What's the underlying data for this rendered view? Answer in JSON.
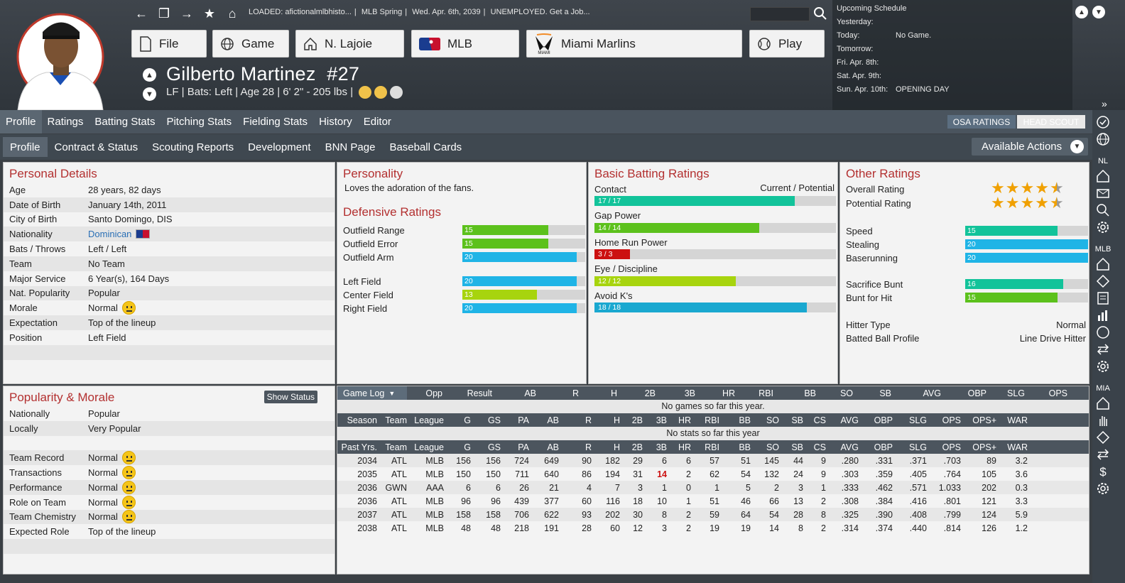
{
  "header": {
    "loaded_text": "LOADED: afictionalmlbhisto...",
    "league_phase": "MLB Spring",
    "date": "Wed. Apr. 6th, 2039",
    "job_status": "UNEMPLOYED. Get a Job...",
    "nav": [
      {
        "label": "File",
        "icon": "file-icon"
      },
      {
        "label": "Game",
        "icon": "globe-icon"
      },
      {
        "label": "N. Lajoie",
        "icon": "home-icon"
      },
      {
        "label": "MLB",
        "icon": "mlb-logo"
      },
      {
        "label": "Miami Marlins",
        "icon": "marlins-logo"
      },
      {
        "label": "Play",
        "icon": "baseball-icon"
      }
    ],
    "player_name": "Gilberto Martinez",
    "player_number": "#27",
    "player_line": "LF | Bats: Left  |  Age 28  |  6' 2\" - 205 lbs  |"
  },
  "schedule": {
    "title": "Upcoming Schedule",
    "rows": [
      {
        "day": "Yesterday:",
        "event": ""
      },
      {
        "day": "Today:",
        "event": "No Game."
      },
      {
        "day": "Tomorrow:",
        "event": ""
      },
      {
        "day": "Fri. Apr. 8th:",
        "event": ""
      },
      {
        "day": "Sat. Apr. 9th:",
        "event": ""
      },
      {
        "day": "Sun. Apr. 10th:",
        "event": "OPENING DAY"
      }
    ]
  },
  "tabs1": [
    "Profile",
    "Ratings",
    "Batting Stats",
    "Pitching Stats",
    "Fielding Stats",
    "History",
    "Editor"
  ],
  "osa_label": "OSA RATINGS",
  "headscout_label": "HEAD SCOUT",
  "tabs2": [
    "Profile",
    "Contract & Status",
    "Scouting Reports",
    "Development",
    "BNN Page",
    "Baseball Cards"
  ],
  "actions_label": "Available Actions",
  "sidebar_labels": {
    "nl": "NL",
    "mlb": "MLB",
    "mia": "MIA"
  },
  "personal": {
    "title": "Personal Details",
    "rows": [
      {
        "k": "Age",
        "v": "28 years, 82 days"
      },
      {
        "k": "Date of Birth",
        "v": "January 14th, 2011"
      },
      {
        "k": "City of Birth",
        "v": "Santo Domingo, DIS"
      },
      {
        "k": "Nationality",
        "v": "Dominican"
      },
      {
        "k": "Bats / Throws",
        "v": "Left / Left"
      },
      {
        "k": "Team",
        "v": "No Team"
      },
      {
        "k": "Major Service",
        "v": "6 Year(s), 164 Days"
      },
      {
        "k": "Nat. Popularity",
        "v": "Popular"
      },
      {
        "k": "Morale",
        "v": "Normal"
      },
      {
        "k": "Expectation",
        "v": "Top of the lineup"
      },
      {
        "k": "Position",
        "v": "Left Field"
      }
    ]
  },
  "personality": {
    "title": "Personality",
    "text": "Loves the adoration of the fans."
  },
  "defensive": {
    "title": "Defensive Ratings",
    "rows": [
      {
        "label": "Outfield Range",
        "value": "15",
        "current": 15,
        "potential": 15,
        "color": "#5cc11c"
      },
      {
        "label": "Outfield Error",
        "value": "15",
        "current": 15,
        "potential": 15,
        "color": "#5cc11c"
      },
      {
        "label": "Outfield Arm",
        "value": "20",
        "current": 20,
        "potential": 20,
        "color": "#1fb4e6"
      },
      {
        "label": "Left Field",
        "value": "20",
        "current": 20,
        "potential": 20,
        "color": "#1fb4e6"
      },
      {
        "label": "Center Field",
        "value": "13",
        "current": 13,
        "potential": 13,
        "color": "#a7d40e"
      },
      {
        "label": "Right Field",
        "value": "20",
        "current": 20,
        "potential": 20,
        "color": "#1fb4e6"
      }
    ]
  },
  "batting": {
    "title": "Basic Batting Ratings",
    "cp_label": "Current / Potential",
    "rows": [
      {
        "label": "Contact",
        "value": "17 / 17",
        "current": 17,
        "color": "#12c39a"
      },
      {
        "label": "Gap Power",
        "value": "14 / 14",
        "current": 14,
        "color": "#5cc11c"
      },
      {
        "label": "Home Run Power",
        "value": "3 / 3",
        "current": 3,
        "color": "#cc1111"
      },
      {
        "label": "Eye / Discipline",
        "value": "12 / 12",
        "current": 12,
        "color": "#a7d40e"
      },
      {
        "label": "Avoid K's",
        "value": "18 / 18",
        "current": 18,
        "color": "#1aa8d0"
      }
    ]
  },
  "other": {
    "title": "Other Ratings",
    "overall_label": "Overall Rating",
    "overall_stars": 4.5,
    "potential_label": "Potential Rating",
    "potential_stars": 4.5,
    "rows": [
      {
        "label": "Speed",
        "value": "15",
        "current": 15,
        "color": "#12c39a"
      },
      {
        "label": "Stealing",
        "value": "20",
        "current": 20,
        "color": "#1fb4e6"
      },
      {
        "label": "Baserunning",
        "value": "20",
        "current": 20,
        "color": "#1fb4e6"
      },
      {
        "label": "Sacrifice Bunt",
        "value": "16",
        "current": 16,
        "color": "#12c39a"
      },
      {
        "label": "Bunt for Hit",
        "value": "15",
        "current": 15,
        "color": "#5cc11c"
      }
    ],
    "hitter_type_label": "Hitter Type",
    "hitter_type": "Normal",
    "bbp_label": "Batted Ball Profile",
    "bbp": "Line Drive Hitter"
  },
  "popularity": {
    "title": "Popularity & Morale",
    "button": "Show Status",
    "rows1": [
      {
        "k": "Nationally",
        "v": "Popular"
      },
      {
        "k": "Locally",
        "v": "Very Popular"
      }
    ],
    "rows2": [
      {
        "k": "Team Record",
        "v": "Normal",
        "emoji": true
      },
      {
        "k": "Transactions",
        "v": "Normal",
        "emoji": true
      },
      {
        "k": "Performance",
        "v": "Normal",
        "emoji": true
      },
      {
        "k": "Role on Team",
        "v": "Normal",
        "emoji": true
      },
      {
        "k": "Team Chemistry",
        "v": "Normal",
        "emoji": true
      },
      {
        "k": "Expected Role",
        "v": "Top of the lineup",
        "emoji": false
      }
    ]
  },
  "stats": {
    "gamelog_label": "Game Log",
    "gamelog_cols": [
      "Opp",
      "Result",
      "AB",
      "R",
      "H",
      "2B",
      "3B",
      "HR",
      "RBI",
      "BB",
      "SO",
      "SB",
      "AVG",
      "OBP",
      "SLG",
      "OPS"
    ],
    "no_games": "No games so far this year.",
    "season_cols": [
      "Season",
      "Team",
      "League",
      "G",
      "GS",
      "PA",
      "AB",
      "R",
      "H",
      "2B",
      "3B",
      "HR",
      "RBI",
      "BB",
      "SO",
      "SB",
      "CS",
      "AVG",
      "OBP",
      "SLG",
      "OPS",
      "OPS+",
      "WAR"
    ],
    "no_stats": "No stats so far this year",
    "past_cols": [
      "Past Yrs.",
      "Team",
      "League",
      "G",
      "GS",
      "PA",
      "AB",
      "R",
      "H",
      "2B",
      "3B",
      "HR",
      "RBI",
      "BB",
      "SO",
      "SB",
      "CS",
      "AVG",
      "OBP",
      "SLG",
      "OPS",
      "OPS+",
      "WAR"
    ],
    "past_rows": [
      [
        "2034",
        "ATL",
        "MLB",
        "156",
        "156",
        "724",
        "649",
        "90",
        "182",
        "29",
        "6",
        "6",
        "57",
        "51",
        "145",
        "44",
        "9",
        ".280",
        ".331",
        ".371",
        ".703",
        "89",
        "3.2"
      ],
      [
        "2035",
        "ATL",
        "MLB",
        "150",
        "150",
        "711",
        "640",
        "86",
        "194",
        "31",
        "14",
        "2",
        "62",
        "54",
        "132",
        "24",
        "9",
        ".303",
        ".359",
        ".405",
        ".764",
        "105",
        "3.6"
      ],
      [
        "2036",
        "GWN",
        "AAA",
        "6",
        "6",
        "26",
        "21",
        "4",
        "7",
        "3",
        "1",
        "0",
        "1",
        "5",
        "2",
        "3",
        "1",
        ".333",
        ".462",
        ".571",
        "1.033",
        "202",
        "0.3"
      ],
      [
        "2036",
        "ATL",
        "MLB",
        "96",
        "96",
        "439",
        "377",
        "60",
        "116",
        "18",
        "10",
        "1",
        "51",
        "46",
        "66",
        "13",
        "2",
        ".308",
        ".384",
        ".416",
        ".801",
        "121",
        "3.3"
      ],
      [
        "2037",
        "ATL",
        "MLB",
        "158",
        "158",
        "706",
        "622",
        "93",
        "202",
        "30",
        "8",
        "2",
        "59",
        "64",
        "54",
        "28",
        "8",
        ".325",
        ".390",
        ".408",
        ".799",
        "124",
        "5.9"
      ],
      [
        "2038",
        "ATL",
        "MLB",
        "48",
        "48",
        "218",
        "191",
        "28",
        "60",
        "12",
        "3",
        "2",
        "19",
        "19",
        "14",
        "8",
        "2",
        ".314",
        ".374",
        ".440",
        ".814",
        "126",
        "1.2"
      ]
    ],
    "highlight": {
      "row": 1,
      "col": 10,
      "color": "#cc1111"
    }
  }
}
